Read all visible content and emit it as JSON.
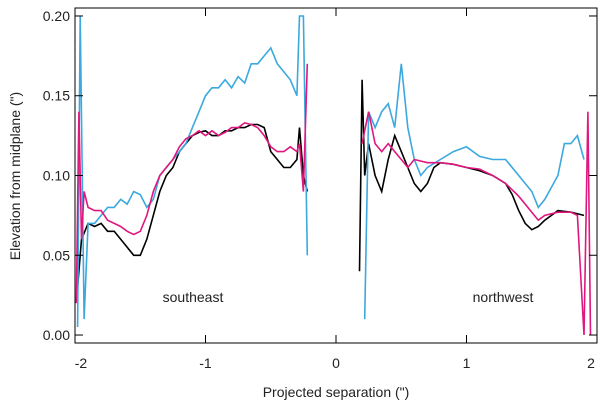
{
  "chart_data": {
    "type": "line",
    "xlabel": "Projected separation (\")",
    "ylabel": "Elevation from midplane (\")",
    "annotations": [
      "southeast",
      "northwest"
    ],
    "xlim": [
      -2,
      2
    ],
    "ylim": [
      -0.005,
      0.205
    ],
    "xticks": [
      -2,
      -1,
      0,
      1,
      2
    ],
    "yticks": [
      {
        "value": 0,
        "label": "0.00"
      },
      {
        "value": 0.05,
        "label": "0.05"
      },
      {
        "value": 0.1,
        "label": "0.10"
      },
      {
        "value": 0.15,
        "label": "0.15"
      },
      {
        "value": 0.2,
        "label": "0.20"
      }
    ],
    "series": [
      {
        "color": "#000000",
        "x": [
          -1.98,
          -1.95,
          -1.9,
          -1.85,
          -1.8,
          -1.75,
          -1.7,
          -1.65,
          -1.6,
          -1.55,
          -1.5,
          -1.45,
          -1.4,
          -1.35,
          -1.3,
          -1.25,
          -1.2,
          -1.15,
          -1.1,
          -1.05,
          -1.0,
          -0.95,
          -0.9,
          -0.85,
          -0.8,
          -0.75,
          -0.7,
          -0.65,
          -0.6,
          -0.55,
          -0.5,
          -0.45,
          -0.4,
          -0.35,
          -0.3,
          -0.28,
          -0.25,
          -0.22,
          null,
          0.18,
          0.2,
          0.22,
          0.25,
          0.3,
          0.35,
          0.4,
          0.45,
          0.5,
          0.55,
          0.6,
          0.65,
          0.7,
          0.75,
          0.8,
          0.9,
          1.0,
          1.1,
          1.2,
          1.3,
          1.35,
          1.4,
          1.45,
          1.5,
          1.55,
          1.6,
          1.7,
          1.8,
          1.9
        ],
        "values": [
          0.03,
          0.06,
          0.07,
          0.068,
          0.07,
          0.065,
          0.065,
          0.06,
          0.055,
          0.05,
          0.05,
          0.06,
          0.075,
          0.09,
          0.1,
          0.105,
          0.115,
          0.12,
          0.125,
          0.127,
          0.128,
          0.125,
          0.125,
          0.128,
          0.128,
          0.13,
          0.13,
          0.132,
          0.132,
          0.13,
          0.115,
          0.11,
          0.105,
          0.105,
          0.11,
          0.13,
          0.1,
          0.09,
          null,
          0.04,
          0.16,
          0.1,
          0.12,
          0.1,
          0.09,
          0.11,
          0.125,
          0.115,
          0.105,
          0.095,
          0.09,
          0.095,
          0.105,
          0.108,
          0.107,
          0.105,
          0.103,
          0.1,
          0.095,
          0.088,
          0.078,
          0.07,
          0.066,
          0.068,
          0.072,
          0.078,
          0.077,
          0.075
        ]
      },
      {
        "color": "#3ba9de",
        "x": [
          -1.98,
          -1.96,
          -1.93,
          -1.9,
          -1.85,
          -1.8,
          -1.75,
          -1.7,
          -1.65,
          -1.6,
          -1.55,
          -1.5,
          -1.45,
          -1.4,
          -1.35,
          -1.3,
          -1.25,
          -1.2,
          -1.15,
          -1.1,
          -1.05,
          -1.0,
          -0.95,
          -0.9,
          -0.85,
          -0.8,
          -0.75,
          -0.7,
          -0.65,
          -0.6,
          -0.55,
          -0.5,
          -0.45,
          -0.4,
          -0.35,
          -0.3,
          -0.28,
          -0.25,
          -0.22,
          null,
          0.22,
          0.25,
          0.3,
          0.35,
          0.4,
          0.45,
          0.5,
          0.55,
          0.6,
          0.65,
          0.7,
          0.8,
          0.9,
          1.0,
          1.1,
          1.2,
          1.3,
          1.4,
          1.5,
          1.55,
          1.6,
          1.7,
          1.75,
          1.8,
          1.85,
          1.9
        ],
        "values": [
          0.005,
          0.2,
          0.01,
          0.07,
          0.07,
          0.075,
          0.08,
          0.08,
          0.085,
          0.082,
          0.09,
          0.088,
          0.08,
          0.085,
          0.1,
          0.105,
          0.11,
          0.115,
          0.12,
          0.13,
          0.14,
          0.15,
          0.155,
          0.155,
          0.16,
          0.155,
          0.162,
          0.158,
          0.17,
          0.17,
          0.175,
          0.18,
          0.17,
          0.165,
          0.16,
          0.15,
          0.2,
          0.2,
          0.05,
          null,
          0.01,
          0.14,
          0.13,
          0.14,
          0.145,
          0.13,
          0.17,
          0.13,
          0.11,
          0.1,
          0.105,
          0.11,
          0.115,
          0.118,
          0.112,
          0.11,
          0.11,
          0.1,
          0.09,
          0.08,
          0.085,
          0.1,
          0.12,
          0.12,
          0.125,
          0.11
        ]
      },
      {
        "color": "#e0177e",
        "x": [
          -1.99,
          -1.97,
          -1.95,
          -1.93,
          -1.9,
          -1.85,
          -1.8,
          -1.75,
          -1.7,
          -1.65,
          -1.6,
          -1.55,
          -1.5,
          -1.45,
          -1.4,
          -1.35,
          -1.3,
          -1.25,
          -1.2,
          -1.15,
          -1.1,
          -1.05,
          -1.0,
          -0.95,
          -0.9,
          -0.85,
          -0.8,
          -0.75,
          -0.7,
          -0.65,
          -0.6,
          -0.55,
          -0.5,
          -0.45,
          -0.4,
          -0.35,
          -0.3,
          -0.28,
          -0.25,
          -0.22,
          null,
          0.2,
          0.25,
          0.3,
          0.35,
          0.4,
          0.45,
          0.5,
          0.55,
          0.6,
          0.7,
          0.8,
          0.9,
          1.0,
          1.1,
          1.2,
          1.3,
          1.4,
          1.5,
          1.55,
          1.6,
          1.7,
          1.8,
          1.85,
          1.9,
          1.93,
          1.95
        ],
        "values": [
          0.02,
          0.14,
          0.06,
          0.09,
          0.08,
          0.078,
          0.078,
          0.072,
          0.07,
          0.068,
          0.065,
          0.063,
          0.065,
          0.075,
          0.09,
          0.1,
          0.105,
          0.11,
          0.118,
          0.123,
          0.125,
          0.128,
          0.125,
          0.128,
          0.125,
          0.127,
          0.13,
          0.13,
          0.133,
          0.132,
          0.13,
          0.125,
          0.118,
          0.115,
          0.115,
          0.118,
          0.115,
          0.12,
          0.09,
          0.17,
          null,
          0.12,
          0.14,
          0.12,
          0.115,
          0.12,
          0.115,
          0.11,
          0.105,
          0.11,
          0.108,
          0.108,
          0.107,
          0.105,
          0.104,
          0.1,
          0.095,
          0.087,
          0.077,
          0.072,
          0.075,
          0.077,
          0.077,
          0.075,
          0.0,
          0.14,
          0.0
        ]
      }
    ]
  }
}
